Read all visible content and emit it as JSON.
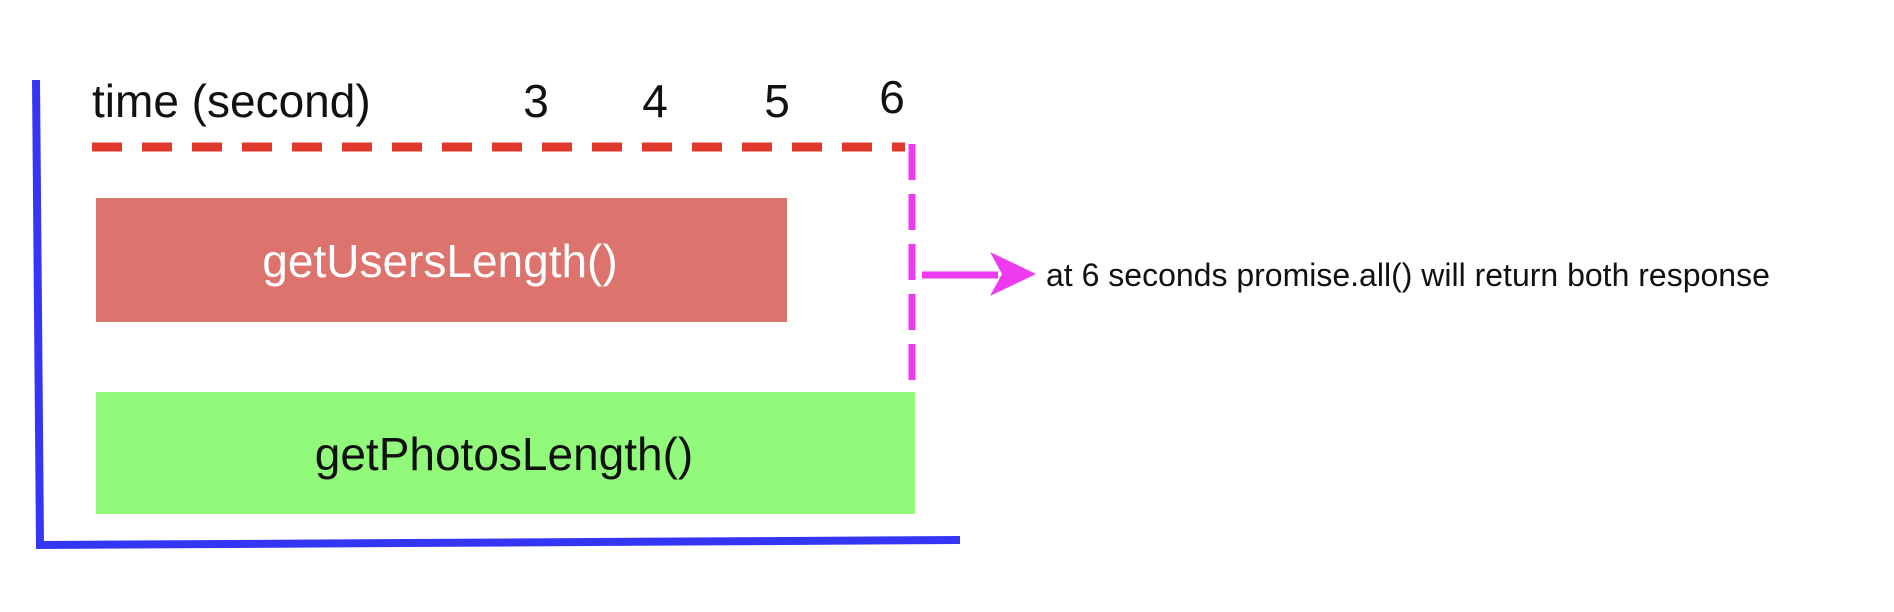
{
  "timeline": {
    "axis_title": "time (second)",
    "ticks": [
      "3",
      "4",
      "5",
      "6"
    ]
  },
  "bars": [
    {
      "label": "getUsersLength()",
      "end_second": 5,
      "color": "#dc736c",
      "text_color": "#ffffff"
    },
    {
      "label": "getPhotosLength()",
      "end_second": 6,
      "color": "#91fa7a",
      "text_color": "#111111"
    }
  ],
  "annotation": {
    "text": "at 6 seconds promise.all() will return both response"
  },
  "colors": {
    "frame": "#3535f5",
    "time_line": "#e0392c",
    "marker": "#ee3af0",
    "arrow": "#ee3af0"
  }
}
